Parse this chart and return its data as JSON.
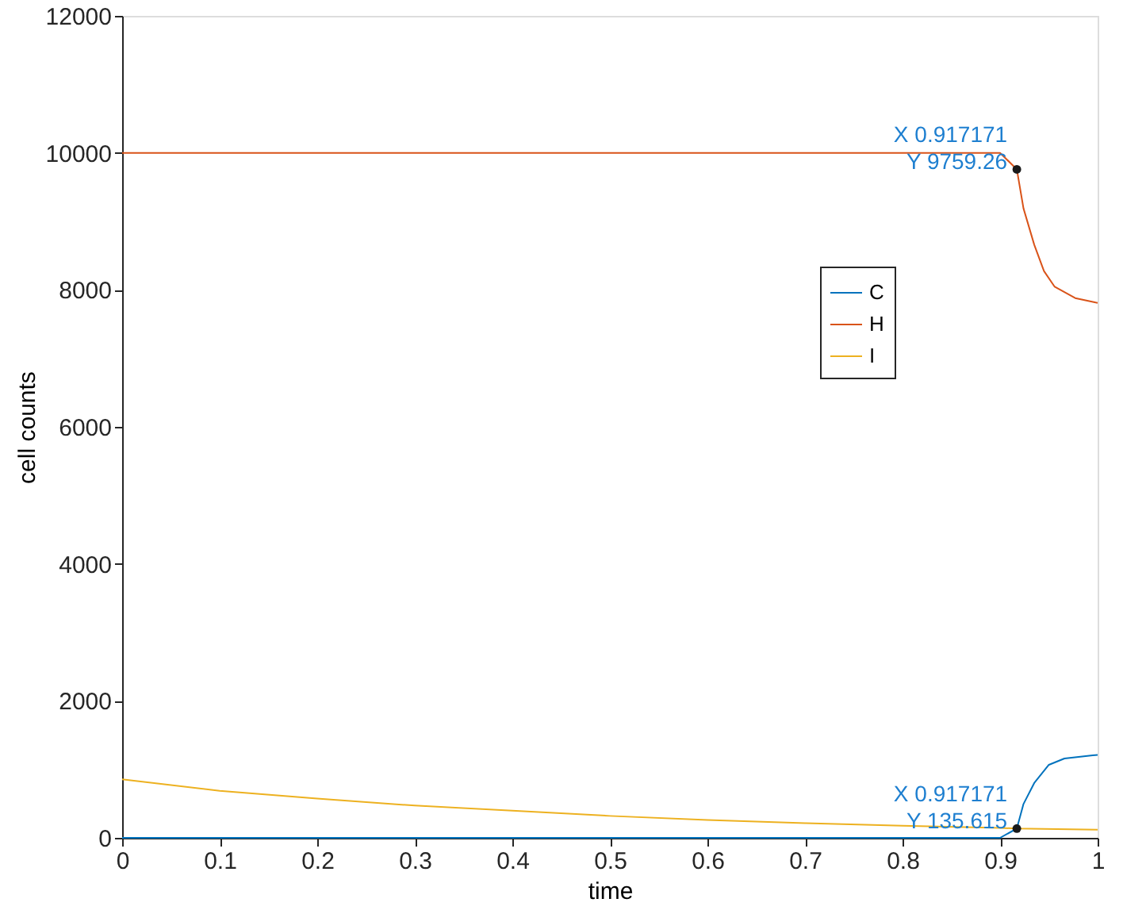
{
  "chart_data": {
    "type": "line",
    "xlabel": "time",
    "ylabel": "cell counts",
    "xlim": [
      0,
      1
    ],
    "ylim": [
      0,
      12000
    ],
    "xticks": [
      0,
      0.1,
      0.2,
      0.3,
      0.4,
      0.5,
      0.6,
      0.7,
      0.8,
      0.9,
      1
    ],
    "yticks": [
      0,
      2000,
      4000,
      6000,
      8000,
      10000,
      12000
    ],
    "grid": false,
    "legend": "right",
    "marker": "none",
    "line_style": "solid",
    "series": [
      {
        "name": "C",
        "color": "#0072bd",
        "x": [
          0,
          0.5,
          0.9,
          0.917171,
          0.924,
          0.935,
          0.95,
          0.966,
          0.995,
          1
        ],
        "values": [
          0,
          0,
          0,
          135.615,
          494,
          800,
          1066,
          1158,
          1204,
          1210
        ]
      },
      {
        "name": "H",
        "color": "#d95319",
        "x": [
          0,
          0.5,
          0.9,
          0.917171,
          0.924,
          0.935,
          0.945,
          0.956,
          0.977,
          0.998,
          1
        ],
        "values": [
          10000,
          10000,
          10000,
          9759.26,
          9190,
          8660,
          8275,
          8045,
          7880,
          7815,
          7810
        ]
      },
      {
        "name": "I",
        "color": "#edb120",
        "x": [
          0,
          0.1,
          0.2,
          0.3,
          0.4,
          0.5,
          0.6,
          0.7,
          0.8,
          0.9,
          0.917171,
          1
        ],
        "values": [
          854,
          686,
          572,
          471,
          396,
          320,
          262,
          215,
          176,
          145,
          135.615,
          118
        ]
      }
    ],
    "annotations": [
      {
        "text": "X 0.917171\nY 9759.26",
        "x": 0.917171,
        "y": 9759.26
      },
      {
        "text": "X 0.917171\nY 135.615",
        "x": 0.917171,
        "y": 135.615
      }
    ]
  }
}
